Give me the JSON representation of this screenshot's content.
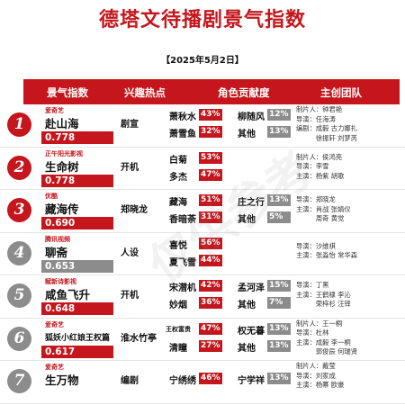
{
  "title": "德塔文待播剧景气指数",
  "date": "【2025年5月2日】",
  "headers": [
    "景气指数",
    "兴趣热点",
    "角色贡献度",
    "主创团队"
  ],
  "colors": {
    "accent": "#c4161c",
    "grey": "#8c8c8c"
  },
  "watermark": "仅供参考",
  "rows": [
    {
      "rank": "1",
      "platform": "爱奇艺",
      "show": "赴山海",
      "value": "0.778",
      "hotspot": "剧宣",
      "roles": [
        {
          "name": "萧秋水",
          "pct": "43%"
        },
        {
          "name": "柳随风",
          "pct": "12%"
        },
        {
          "name": "萧雪鱼",
          "pct": "32%"
        },
        {
          "name": "其他",
          "pct": "13%"
        }
      ],
      "team": [
        "制片人：钟君艳",
        "导演：任海涛",
        "编剧：成毅  古力娜扎",
        "　　　徐振轩  刘梦芮"
      ]
    },
    {
      "rank": "2",
      "platform": "正午阳光影视",
      "show": "生命树",
      "value": "0.778",
      "hotspot": "开机",
      "roles": [
        {
          "name": "白菊",
          "pct": "53%"
        },
        {
          "name": "",
          "pct": ""
        },
        {
          "name": "多杰",
          "pct": "47%"
        },
        {
          "name": "",
          "pct": ""
        }
      ],
      "team": [
        "制片人：侯鸿亮",
        "导演：李雪",
        "主演：杨紫  胡歌"
      ]
    },
    {
      "rank": "3",
      "platform": "优酷",
      "show": "藏海传",
      "value": "0.690",
      "hotspot": "郑晓龙",
      "roles": [
        {
          "name": "藏海",
          "pct": "51%"
        },
        {
          "name": "庄之行",
          "pct": "13%"
        },
        {
          "name": "香暗荼",
          "pct": "31%"
        },
        {
          "name": "其他",
          "pct": "5%"
        }
      ],
      "team": [
        "导演：郑晓龙",
        "主演：肖战  张婧仪",
        "　　　周奇  黄觉"
      ]
    },
    {
      "rank": "4",
      "platform": "腾讯视频",
      "show": "聊斋",
      "value": "0.653",
      "hotspot": "人设",
      "roles": [
        {
          "name": "喜悦",
          "pct": "56%"
        },
        {
          "name": "",
          "pct": ""
        },
        {
          "name": "夏飞雪",
          "pct": "44%"
        },
        {
          "name": "",
          "pct": ""
        }
      ],
      "team": [
        "导演：沙维祺",
        "主演：张淼怡  常华森"
      ]
    },
    {
      "rank": "5",
      "platform": "赋新诗影视",
      "show": "咸鱼飞升",
      "value": "0.648",
      "hotspot": "开机",
      "roles": [
        {
          "name": "宋潜机",
          "pct": "42%"
        },
        {
          "name": "孟河泽",
          "pct": "15%"
        },
        {
          "name": "妙烟",
          "pct": "36%"
        },
        {
          "name": "其他",
          "pct": "7%"
        }
      ],
      "team": [
        "导演：丁黑",
        "主演：王鹤棣  李沁",
        "　　　荣梓杉  汪铎"
      ]
    },
    {
      "rank": "6",
      "platform": "爱奇艺",
      "show": "狐妖小红娘王权篇",
      "value": "0.617",
      "hotspot": "淮水竹亭",
      "roles": [
        {
          "name": "王权富贵",
          "pct": "47%"
        },
        {
          "name": "权无暮",
          "pct": "13%"
        },
        {
          "name": "清瞳",
          "pct": "27%"
        },
        {
          "name": "其他",
          "pct": "13%"
        }
      ],
      "team": [
        "制片人：王一桐",
        "导演：杜林",
        "主演：成毅  李一桐",
        "　　　郭俊辰  何瑞贤"
      ]
    },
    {
      "rank": "7",
      "platform": "爱奇艺",
      "show": "生万物",
      "value": "",
      "hotspot": "编剧",
      "roles": [
        {
          "name": "宁绣绣",
          "pct": "46%"
        },
        {
          "name": "宁学祥",
          "pct": "13%"
        },
        {
          "name": "",
          "pct": ""
        },
        {
          "name": "",
          "pct": ""
        }
      ],
      "team": [
        "制片人：戴莹",
        "导演：刘家成",
        "主演：杨幂  欧豪"
      ]
    }
  ]
}
